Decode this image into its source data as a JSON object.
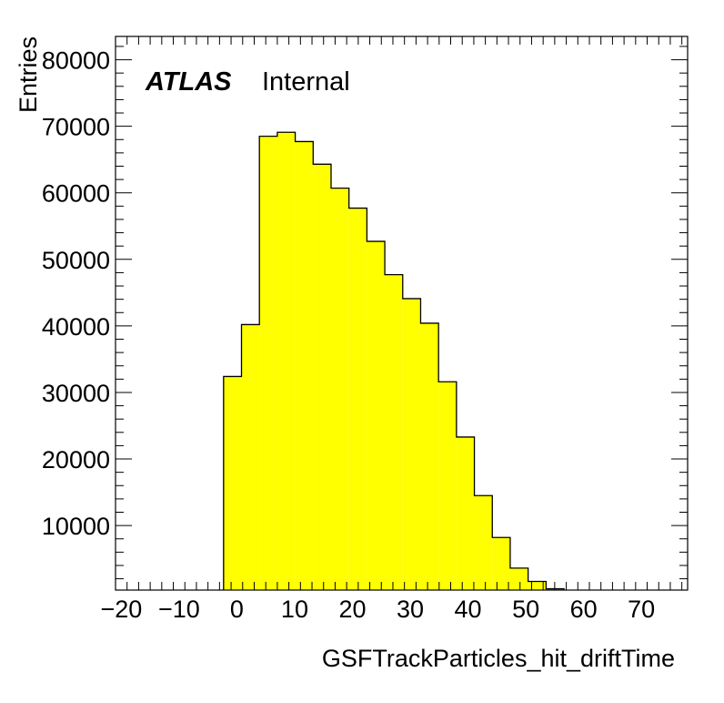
{
  "chart_data": {
    "type": "bar",
    "histogram": true,
    "title": "",
    "xlabel": "GSFTrackParticles_hit_driftTime",
    "ylabel": "Entries",
    "xlim": [
      -21,
      78
    ],
    "ylim": [
      300,
      83500
    ],
    "fill_color": "#ffff00",
    "edge_color": "#000000",
    "grid": false,
    "legend": "none",
    "bin_edges": [
      -2.3,
      0.8,
      3.9,
      7.0,
      10.1,
      13.2,
      16.3,
      19.4,
      22.5,
      25.6,
      28.7,
      31.8,
      34.9,
      38.0,
      41.1,
      44.2,
      47.3,
      50.4,
      53.5,
      56.6
    ],
    "values": [
      32400,
      40200,
      68500,
      69100,
      67700,
      64300,
      60700,
      57700,
      52700,
      47700,
      44100,
      40400,
      31600,
      23300,
      14500,
      8200,
      3600,
      1600,
      500
    ],
    "xticks": [
      -20,
      -10,
      0,
      10,
      20,
      30,
      40,
      50,
      60,
      70
    ],
    "xtick_labels": [
      "−20",
      "−10",
      "0",
      "10",
      "20",
      "30",
      "40",
      "50",
      "60",
      "70"
    ],
    "yticks": [
      10000,
      20000,
      30000,
      40000,
      50000,
      60000,
      70000,
      80000
    ],
    "ytick_labels": [
      "10000",
      "20000",
      "30000",
      "40000",
      "50000",
      "60000",
      "70000",
      "80000"
    ],
    "annotation": {
      "atlas": "ATLAS",
      "status": "Internal"
    }
  }
}
